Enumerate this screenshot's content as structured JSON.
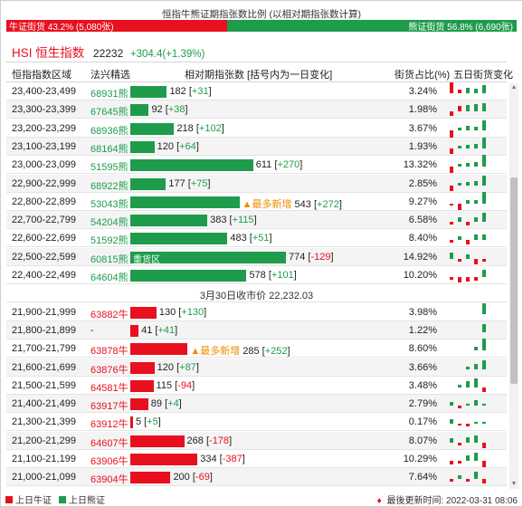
{
  "top_title": "恒指牛熊证期指张数比例 (以相对期指张数计算)",
  "ratio": {
    "bull_label": "牛证街货 43.2% (5,080张)",
    "bear_label": "熊证街货 56.8% (6,690张)",
    "bull_fraction": 0.432,
    "colors": {
      "bull": "#e8101f",
      "bear": "#1e9c4c"
    }
  },
  "index": {
    "name": "HSI 恒生指数",
    "value": "22232",
    "change": "+304.4(+1.39%)"
  },
  "columns": {
    "range": "恒指指数区域",
    "code": "法兴精选",
    "bar": "相对期指张数 [括号内为一日变化]",
    "pct": "街货占比(%)",
    "spark": "五日街货变化"
  },
  "bear_rows": [
    {
      "range": "23,400-23,499",
      "code": "68931熊",
      "value": 182,
      "change": "+31",
      "pct": "3.24%",
      "spark": [
        [
          0,
          14,
          "r"
        ],
        [
          1,
          4,
          "r"
        ],
        [
          2,
          6,
          "g"
        ],
        [
          3,
          5,
          "g"
        ],
        [
          4,
          9,
          "g"
        ]
      ]
    },
    {
      "range": "23,300-23,399",
      "code": "67645熊",
      "value": 92,
      "change": "+38",
      "pct": "1.98%",
      "spark": [
        [
          0,
          -5,
          "r"
        ],
        [
          1,
          6,
          "r"
        ],
        [
          2,
          7,
          "g"
        ],
        [
          3,
          8,
          "g"
        ],
        [
          4,
          9,
          "g"
        ]
      ]
    },
    {
      "range": "23,200-23,299",
      "code": "68936熊",
      "value": 218,
      "change": "+102",
      "pct": "3.67%",
      "spark": [
        [
          0,
          -8,
          "r"
        ],
        [
          1,
          3,
          "g"
        ],
        [
          2,
          5,
          "g"
        ],
        [
          3,
          4,
          "g"
        ],
        [
          4,
          11,
          "g"
        ]
      ]
    },
    {
      "range": "23,100-23,199",
      "code": "68164熊",
      "value": 120,
      "change": "+64",
      "pct": "1.93%",
      "spark": [
        [
          0,
          -6,
          "r"
        ],
        [
          1,
          3,
          "g"
        ],
        [
          2,
          4,
          "g"
        ],
        [
          3,
          5,
          "g"
        ],
        [
          4,
          12,
          "g"
        ]
      ]
    },
    {
      "range": "23,000-23,099",
      "code": "51595熊",
      "value": 611,
      "change": "+270",
      "pct": "13.32%",
      "spark": [
        [
          0,
          -7,
          "r"
        ],
        [
          1,
          3,
          "g"
        ],
        [
          2,
          4,
          "g"
        ],
        [
          3,
          5,
          "g"
        ],
        [
          4,
          13,
          "g"
        ]
      ]
    },
    {
      "range": "22,900-22,999",
      "code": "68922熊",
      "value": 177,
      "change": "+75",
      "pct": "2.85%",
      "spark": [
        [
          0,
          -6,
          "r"
        ],
        [
          1,
          3,
          "g"
        ],
        [
          2,
          4,
          "g"
        ],
        [
          3,
          5,
          "g"
        ],
        [
          4,
          11,
          "g"
        ]
      ]
    },
    {
      "range": "22,800-22,899",
      "code": "53043熊",
      "value": 543,
      "change": "+272",
      "tag": "▲最多新增",
      "pct": "9.27%",
      "spark": [
        [
          0,
          -2,
          "r"
        ],
        [
          1,
          -7,
          "r"
        ],
        [
          2,
          4,
          "g"
        ],
        [
          3,
          4,
          "g"
        ],
        [
          4,
          13,
          "g"
        ]
      ]
    },
    {
      "range": "22,700-22,799",
      "code": "54204熊",
      "value": 383,
      "change": "+115",
      "pct": "6.58%",
      "spark": [
        [
          0,
          -3,
          "r"
        ],
        [
          1,
          5,
          "g"
        ],
        [
          2,
          -4,
          "r"
        ],
        [
          3,
          5,
          "g"
        ],
        [
          4,
          10,
          "g"
        ]
      ]
    },
    {
      "range": "22,600-22,699",
      "code": "51592熊",
      "value": 483,
      "change": "+51",
      "pct": "8.40%",
      "spark": [
        [
          0,
          -3,
          "r"
        ],
        [
          1,
          4,
          "g"
        ],
        [
          2,
          -5,
          "r"
        ],
        [
          3,
          6,
          "g"
        ],
        [
          4,
          6,
          "g"
        ]
      ]
    },
    {
      "range": "22,500-22,599",
      "code": "60815熊",
      "value": 774,
      "change": "-129",
      "inner": "重货区",
      "pct": "14.92%",
      "spark": [
        [
          0,
          7,
          "g"
        ],
        [
          1,
          -3,
          "r"
        ],
        [
          2,
          5,
          "g"
        ],
        [
          3,
          -6,
          "r"
        ],
        [
          4,
          -3,
          "r"
        ]
      ]
    },
    {
      "range": "22,400-22,499",
      "code": "64604熊",
      "value": 578,
      "change": "+101",
      "pct": "10.20%",
      "spark": [
        [
          0,
          -3,
          "r"
        ],
        [
          1,
          -6,
          "r"
        ],
        [
          2,
          -5,
          "r"
        ],
        [
          3,
          -4,
          "r"
        ],
        [
          4,
          8,
          "g"
        ]
      ]
    }
  ],
  "separator": "3月30日收市价 22,232.03",
  "bull_rows": [
    {
      "range": "21,900-21,999",
      "code": "63882牛",
      "value": 130,
      "change": "+130",
      "pct": "3.98%",
      "spark": [
        [
          4,
          12,
          "g"
        ]
      ]
    },
    {
      "range": "21,800-21,899",
      "code": "-",
      "value": 41,
      "change": "+41",
      "pct": "1.22%",
      "spark": [
        [
          4,
          9,
          "g"
        ]
      ]
    },
    {
      "range": "21,700-21,799",
      "code": "63878牛",
      "value": 285,
      "change": "+252",
      "tag": "▲最多新增",
      "pct": "8.60%",
      "spark": [
        [
          3,
          4,
          "g"
        ],
        [
          4,
          13,
          "g"
        ]
      ]
    },
    {
      "range": "21,600-21,699",
      "code": "63876牛",
      "value": 120,
      "change": "+87",
      "pct": "3.66%",
      "spark": [
        [
          2,
          3,
          "g"
        ],
        [
          3,
          6,
          "g"
        ],
        [
          4,
          10,
          "g"
        ]
      ]
    },
    {
      "range": "21,500-21,599",
      "code": "64581牛",
      "value": 115,
      "change": "-94",
      "pct": "3.48%",
      "spark": [
        [
          1,
          3,
          "g"
        ],
        [
          2,
          7,
          "g"
        ],
        [
          3,
          10,
          "g"
        ],
        [
          4,
          -5,
          "r"
        ]
      ]
    },
    {
      "range": "21,400-21,499",
      "code": "63917牛",
      "value": 89,
      "change": "+4",
      "pct": "2.79%",
      "spark": [
        [
          0,
          4,
          "g"
        ],
        [
          1,
          -3,
          "r"
        ],
        [
          2,
          2,
          "g"
        ],
        [
          3,
          6,
          "g"
        ],
        [
          4,
          2,
          "g"
        ]
      ]
    },
    {
      "range": "21,300-21,399",
      "code": "63912牛",
      "value": 5,
      "change": "+5",
      "pct": "0.17%",
      "spark": [
        [
          0,
          5,
          "g"
        ],
        [
          1,
          -2,
          "r"
        ],
        [
          2,
          -3,
          "r"
        ],
        [
          3,
          2,
          "g"
        ],
        [
          4,
          2,
          "g"
        ]
      ]
    },
    {
      "range": "21,200-21,299",
      "code": "64607牛",
      "value": 268,
      "change": "-178",
      "pct": "8.07%",
      "spark": [
        [
          0,
          5,
          "g"
        ],
        [
          1,
          -3,
          "r"
        ],
        [
          2,
          6,
          "g"
        ],
        [
          3,
          8,
          "g"
        ],
        [
          4,
          -6,
          "r"
        ]
      ]
    },
    {
      "range": "21,100-21,199",
      "code": "63906牛",
      "value": 334,
      "change": "-387",
      "pct": "10.29%",
      "spark": [
        [
          0,
          -4,
          "r"
        ],
        [
          1,
          -3,
          "r"
        ],
        [
          2,
          6,
          "g"
        ],
        [
          3,
          9,
          "g"
        ],
        [
          4,
          -7,
          "r"
        ]
      ]
    },
    {
      "range": "21,000-21,099",
      "code": "63904牛",
      "value": 200,
      "change": "-69",
      "pct": "7.64%",
      "spark": [
        [
          0,
          -3,
          "r"
        ],
        [
          1,
          4,
          "g"
        ],
        [
          2,
          -3,
          "r"
        ],
        [
          3,
          8,
          "g"
        ],
        [
          4,
          -5,
          "r"
        ]
      ]
    }
  ],
  "bar_max_value": 774,
  "legend": {
    "bull": "上日牛证",
    "bear": "上日熊证"
  },
  "update": {
    "icon": "bell-icon",
    "glyph": "♦",
    "text": "最後更新时间: 2022-03-31 08:06"
  }
}
